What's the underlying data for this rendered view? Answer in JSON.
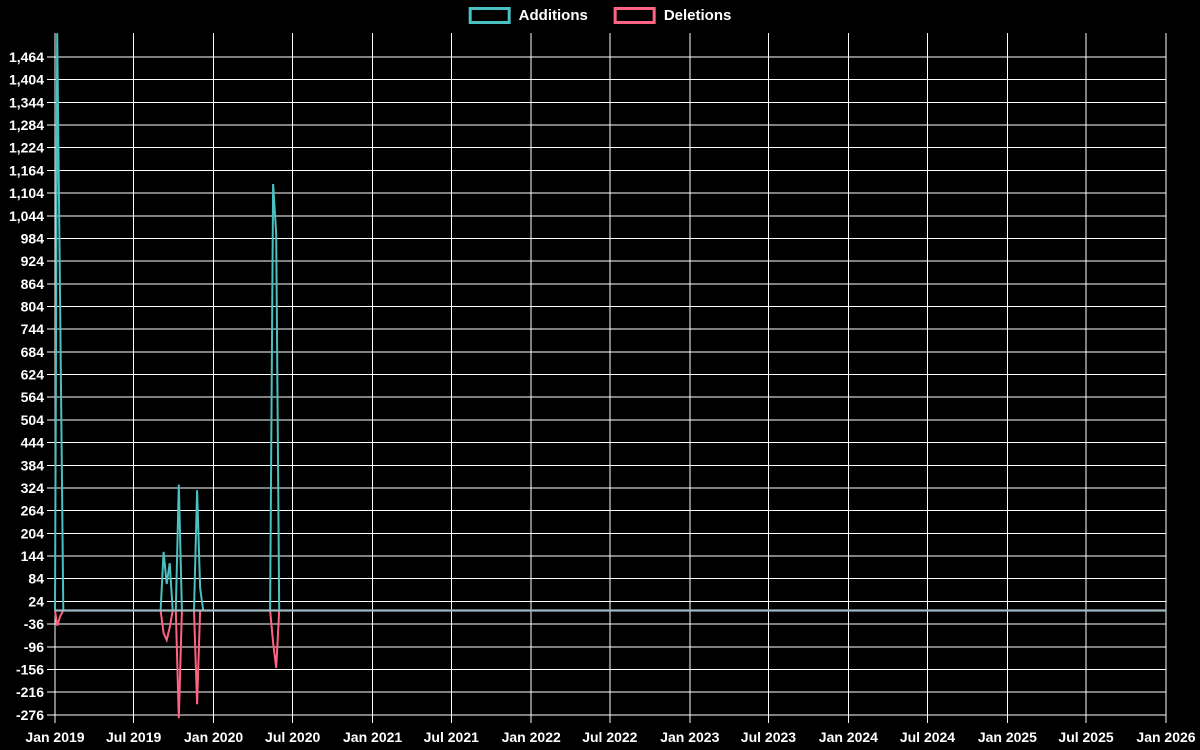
{
  "chart_data": {
    "type": "line",
    "title": "",
    "background": "#000000",
    "grid_color": "#ffffff",
    "text_color": "#ffffff",
    "zero_line_color": "#9db6bf",
    "legend_position": "top-center",
    "grid": true,
    "legend": [
      {
        "label": "Additions",
        "color": "#4BC0C0"
      },
      {
        "label": "Deletions",
        "color": "#FF6384"
      }
    ],
    "y_axis": {
      "min": -276,
      "max": 1464,
      "step": 60,
      "ticks": [
        {
          "value": 1464,
          "label": "1,464"
        },
        {
          "value": 1404,
          "label": "1,404"
        },
        {
          "value": 1344,
          "label": "1,344"
        },
        {
          "value": 1284,
          "label": "1,284"
        },
        {
          "value": 1224,
          "label": "1,224"
        },
        {
          "value": 1164,
          "label": "1,164"
        },
        {
          "value": 1104,
          "label": "1,104"
        },
        {
          "value": 1044,
          "label": "1,044"
        },
        {
          "value": 984,
          "label": "984"
        },
        {
          "value": 924,
          "label": "924"
        },
        {
          "value": 864,
          "label": "864"
        },
        {
          "value": 804,
          "label": "804"
        },
        {
          "value": 744,
          "label": "744"
        },
        {
          "value": 684,
          "label": "684"
        },
        {
          "value": 624,
          "label": "624"
        },
        {
          "value": 564,
          "label": "564"
        },
        {
          "value": 504,
          "label": "504"
        },
        {
          "value": 444,
          "label": "444"
        },
        {
          "value": 384,
          "label": "384"
        },
        {
          "value": 324,
          "label": "324"
        },
        {
          "value": 264,
          "label": "264"
        },
        {
          "value": 204,
          "label": "204"
        },
        {
          "value": 144,
          "label": "144"
        },
        {
          "value": 84,
          "label": "84"
        },
        {
          "value": 24,
          "label": "24"
        },
        {
          "value": -36,
          "label": "-36"
        },
        {
          "value": -96,
          "label": "-96"
        },
        {
          "value": -156,
          "label": "-156"
        },
        {
          "value": -216,
          "label": "-216"
        },
        {
          "value": -276,
          "label": "-276"
        }
      ]
    },
    "x_axis": {
      "start": "2019-01-01",
      "end": "2026-01-01",
      "ticks": [
        {
          "date": "2019-01-01",
          "label": "Jan 2019"
        },
        {
          "date": "2019-07-01",
          "label": "Jul 2019"
        },
        {
          "date": "2020-01-01",
          "label": "Jan 2020"
        },
        {
          "date": "2020-07-01",
          "label": "Jul 2020"
        },
        {
          "date": "2021-01-01",
          "label": "Jan 2021"
        },
        {
          "date": "2021-07-01",
          "label": "Jul 2021"
        },
        {
          "date": "2022-01-01",
          "label": "Jan 2022"
        },
        {
          "date": "2022-07-01",
          "label": "Jul 2022"
        },
        {
          "date": "2023-01-01",
          "label": "Jan 2023"
        },
        {
          "date": "2023-07-01",
          "label": "Jul 2023"
        },
        {
          "date": "2024-01-01",
          "label": "Jan 2024"
        },
        {
          "date": "2024-07-01",
          "label": "Jul 2024"
        },
        {
          "date": "2025-01-01",
          "label": "Jan 2025"
        },
        {
          "date": "2025-07-01",
          "label": "Jul 2025"
        },
        {
          "date": "2026-01-01",
          "label": "Jan 2026"
        }
      ]
    },
    "series": [
      {
        "name": "Additions",
        "color": "#4BC0C0",
        "points": [
          [
            "2019-01-01",
            0
          ],
          [
            "2019-01-06",
            1527
          ],
          [
            "2019-01-13",
            790
          ],
          [
            "2019-01-20",
            0
          ],
          [
            "2019-09-01",
            0
          ],
          [
            "2019-09-08",
            155
          ],
          [
            "2019-09-15",
            70
          ],
          [
            "2019-09-22",
            125
          ],
          [
            "2019-09-29",
            0
          ],
          [
            "2019-10-06",
            0
          ],
          [
            "2019-10-13",
            333
          ],
          [
            "2019-10-20",
            0
          ],
          [
            "2019-11-17",
            0
          ],
          [
            "2019-11-24",
            318
          ],
          [
            "2019-12-01",
            60
          ],
          [
            "2019-12-08",
            0
          ],
          [
            "2020-05-10",
            0
          ],
          [
            "2020-05-17",
            1128
          ],
          [
            "2020-05-24",
            997
          ],
          [
            "2020-05-31",
            0
          ],
          [
            "2026-01-01",
            0
          ]
        ]
      },
      {
        "name": "Deletions",
        "color": "#FF6384",
        "points": [
          [
            "2019-01-01",
            0
          ],
          [
            "2019-01-06",
            -40
          ],
          [
            "2019-01-13",
            -15
          ],
          [
            "2019-01-20",
            0
          ],
          [
            "2019-09-01",
            0
          ],
          [
            "2019-09-08",
            -60
          ],
          [
            "2019-09-15",
            -78
          ],
          [
            "2019-09-22",
            -45
          ],
          [
            "2019-09-29",
            0
          ],
          [
            "2019-10-06",
            0
          ],
          [
            "2019-10-13",
            -285
          ],
          [
            "2019-10-20",
            0
          ],
          [
            "2019-11-17",
            0
          ],
          [
            "2019-11-24",
            -248
          ],
          [
            "2019-12-01",
            0
          ],
          [
            "2020-05-10",
            0
          ],
          [
            "2020-05-17",
            -85
          ],
          [
            "2020-05-24",
            -152
          ],
          [
            "2020-05-31",
            0
          ],
          [
            "2026-01-01",
            0
          ]
        ]
      }
    ]
  }
}
